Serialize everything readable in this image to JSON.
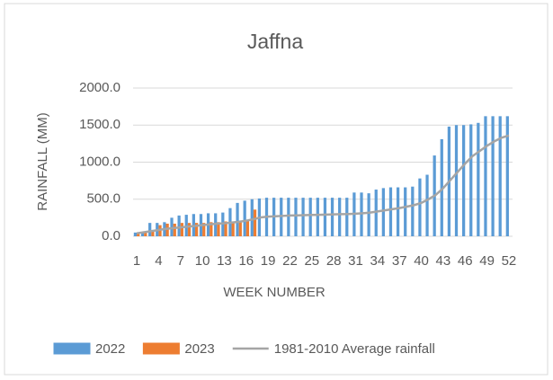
{
  "chart_data": {
    "type": "bar",
    "title": "Jaffna",
    "x_label": "WEEK NUMBER",
    "y_label": "RAINFALL (MM)",
    "categories": [
      "1",
      null,
      null,
      "4",
      null,
      null,
      "7",
      null,
      null,
      "10",
      null,
      null,
      "13",
      null,
      null,
      "16",
      null,
      null,
      "19",
      null,
      null,
      "22",
      null,
      null,
      "25",
      null,
      null,
      "28",
      null,
      null,
      "31",
      null,
      null,
      "34",
      null,
      null,
      "37",
      null,
      null,
      "40",
      null,
      null,
      "43",
      null,
      null,
      "46",
      null,
      null,
      "49",
      null,
      null,
      "52"
    ],
    "series": [
      {
        "name": "2022",
        "kind": "bar",
        "color": "#5b9bd5",
        "values": [
          50,
          60,
          180,
          180,
          190,
          250,
          280,
          290,
          300,
          300,
          310,
          310,
          320,
          380,
          450,
          480,
          500,
          510,
          520,
          520,
          520,
          520,
          520,
          520,
          520,
          520,
          520,
          520,
          520,
          520,
          590,
          590,
          580,
          630,
          650,
          660,
          660,
          660,
          670,
          780,
          830,
          1090,
          1310,
          1480,
          1500,
          1500,
          1510,
          1530,
          1620,
          1620,
          1620,
          1620
        ]
      },
      {
        "name": "2023",
        "kind": "bar",
        "color": "#ed7d31",
        "values": [
          40,
          60,
          70,
          150,
          170,
          170,
          180,
          180,
          180,
          180,
          190,
          190,
          200,
          200,
          210,
          220,
          360,
          null,
          null,
          null,
          null,
          null,
          null,
          null,
          null,
          null,
          null,
          null,
          null,
          null,
          null,
          null,
          null,
          null,
          null,
          null,
          null,
          null,
          null,
          null,
          null,
          null,
          null,
          null,
          null,
          null,
          null,
          null,
          null,
          null,
          null,
          null
        ]
      },
      {
        "name": "1981-2010 Average rainfall",
        "kind": "line",
        "color": "#a5a5a5",
        "values": [
          40,
          55,
          70,
          85,
          100,
          110,
          120,
          130,
          140,
          150,
          160,
          170,
          175,
          185,
          195,
          210,
          230,
          255,
          265,
          270,
          275,
          280,
          282,
          285,
          288,
          290,
          292,
          295,
          298,
          300,
          305,
          310,
          320,
          335,
          350,
          365,
          380,
          400,
          420,
          450,
          500,
          560,
          650,
          760,
          870,
          980,
          1080,
          1150,
          1220,
          1280,
          1330,
          1360
        ]
      }
    ],
    "ylim": [
      0,
      2000
    ],
    "yticks": [
      {
        "value": 0,
        "label": "0.0"
      },
      {
        "value": 500,
        "label": "500.0"
      },
      {
        "value": 1000,
        "label": "1000.0"
      },
      {
        "value": 1500,
        "label": "1500.0"
      },
      {
        "value": 2000,
        "label": "2000.0"
      }
    ],
    "grid": true,
    "legend": "bottom"
  }
}
